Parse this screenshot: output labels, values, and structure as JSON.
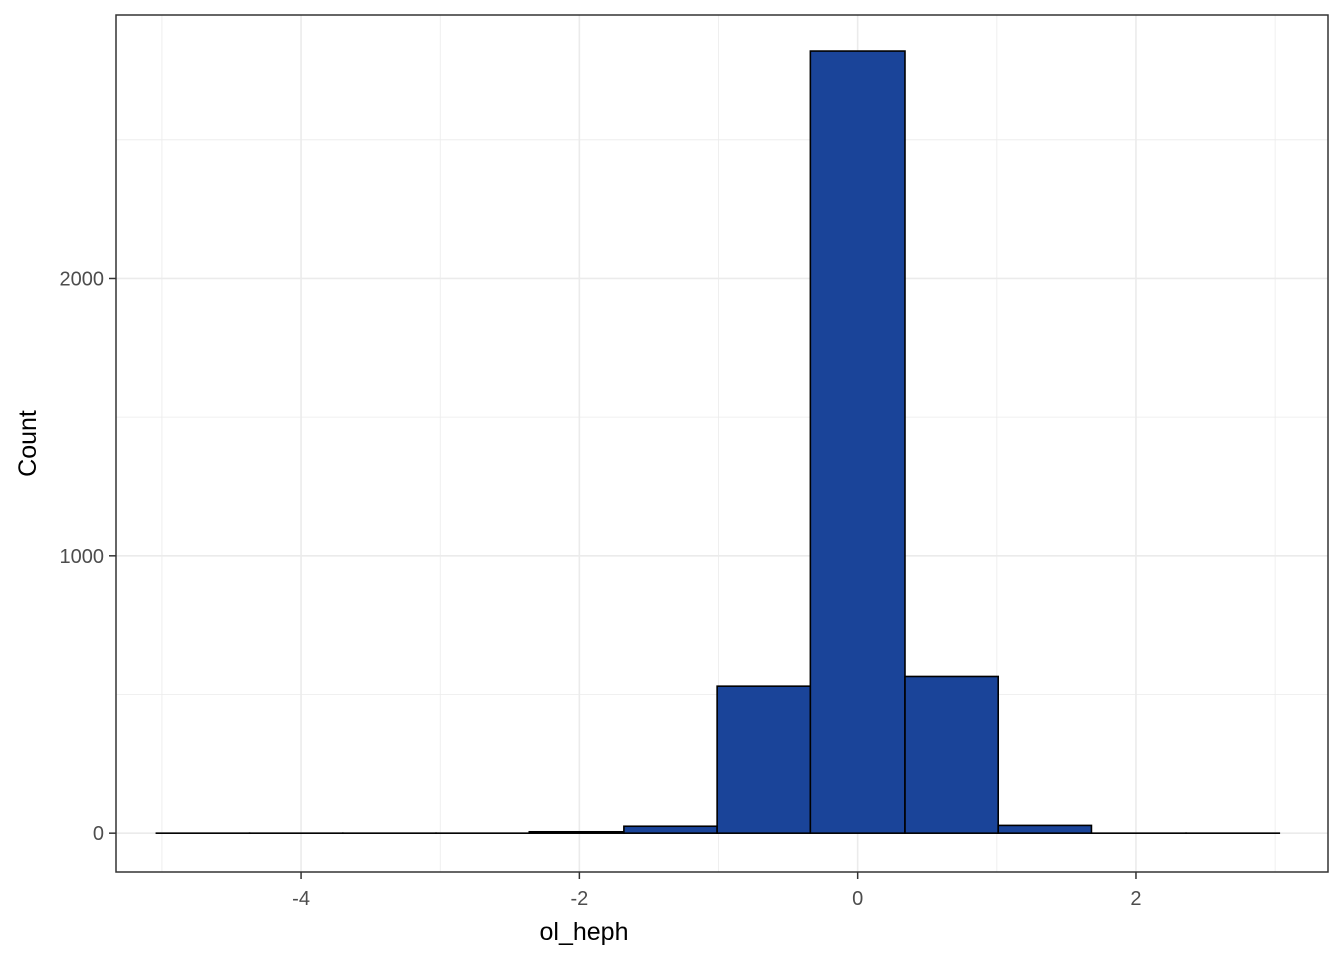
{
  "chart_data": {
    "type": "bar",
    "xlabel": "ol_heph",
    "ylabel": "Count",
    "xlim": [
      -5.33,
      3.38
    ],
    "ylim": [
      -140,
      2950
    ],
    "grid": true,
    "x_ticks": [
      -4,
      -2,
      0,
      2
    ],
    "x_tick_labels": [
      "-4",
      "-2",
      "0",
      "2"
    ],
    "y_ticks": [
      0,
      1000,
      2000
    ],
    "y_tick_labels": [
      "0",
      "1000",
      "2000"
    ],
    "bins": [
      {
        "x0": -5.04,
        "x1": -4.37,
        "count": 0
      },
      {
        "x0": -4.37,
        "x1": -3.7,
        "count": 0
      },
      {
        "x0": -3.7,
        "x1": -3.03,
        "count": 0
      },
      {
        "x0": -3.03,
        "x1": -2.36,
        "count": 0
      },
      {
        "x0": -2.36,
        "x1": -1.68,
        "count": 5
      },
      {
        "x0": -1.68,
        "x1": -1.01,
        "count": 25
      },
      {
        "x0": -1.01,
        "x1": -0.34,
        "count": 530
      },
      {
        "x0": -0.34,
        "x1": 0.34,
        "count": 2820
      },
      {
        "x0": 0.34,
        "x1": 1.01,
        "count": 565
      },
      {
        "x0": 1.01,
        "x1": 1.68,
        "count": 28
      },
      {
        "x0": 1.68,
        "x1": 2.36,
        "count": 0
      },
      {
        "x0": 2.36,
        "x1": 3.03,
        "count": 0
      }
    ],
    "colors": {
      "fill": "#1a4499",
      "edge": "#000000",
      "grid": "#ebebeb",
      "frame": "#333333"
    }
  }
}
